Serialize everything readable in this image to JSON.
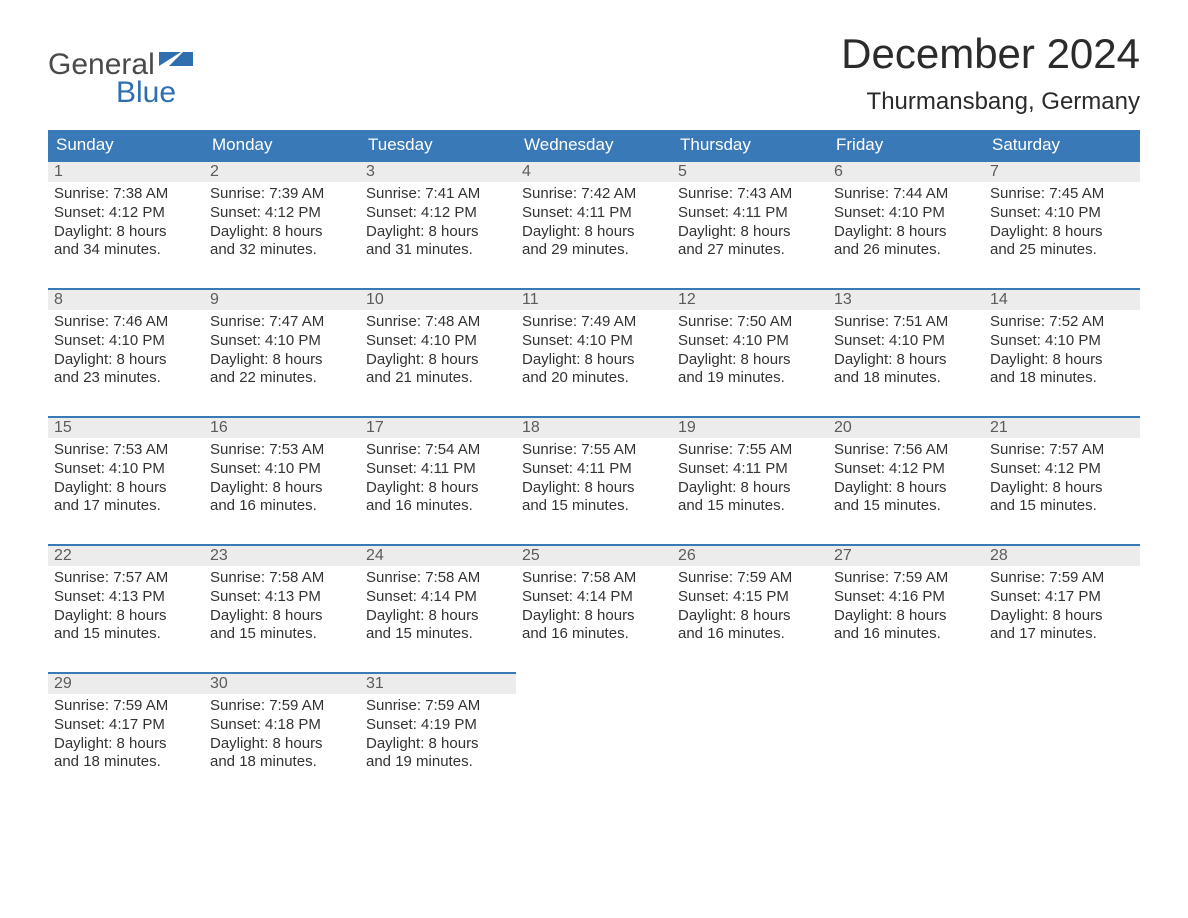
{
  "brand": {
    "line1": "General",
    "line2": "Blue"
  },
  "title": "December 2024",
  "location": "Thurmansbang, Germany",
  "colors": {
    "header_bg": "#3a79b7",
    "header_text": "#ffffff",
    "daynum_bg": "#ececec",
    "daynum_border": "#3a79b7",
    "body_text": "#333333",
    "brand_gray": "#4a4a4a",
    "brand_blue": "#2f6fb0",
    "page_bg": "#ffffff"
  },
  "weekdays": [
    "Sunday",
    "Monday",
    "Tuesday",
    "Wednesday",
    "Thursday",
    "Friday",
    "Saturday"
  ],
  "weeks": [
    [
      {
        "n": "1",
        "sr": "Sunrise: 7:38 AM",
        "ss": "Sunset: 4:12 PM",
        "d1": "Daylight: 8 hours",
        "d2": "and 34 minutes."
      },
      {
        "n": "2",
        "sr": "Sunrise: 7:39 AM",
        "ss": "Sunset: 4:12 PM",
        "d1": "Daylight: 8 hours",
        "d2": "and 32 minutes."
      },
      {
        "n": "3",
        "sr": "Sunrise: 7:41 AM",
        "ss": "Sunset: 4:12 PM",
        "d1": "Daylight: 8 hours",
        "d2": "and 31 minutes."
      },
      {
        "n": "4",
        "sr": "Sunrise: 7:42 AM",
        "ss": "Sunset: 4:11 PM",
        "d1": "Daylight: 8 hours",
        "d2": "and 29 minutes."
      },
      {
        "n": "5",
        "sr": "Sunrise: 7:43 AM",
        "ss": "Sunset: 4:11 PM",
        "d1": "Daylight: 8 hours",
        "d2": "and 27 minutes."
      },
      {
        "n": "6",
        "sr": "Sunrise: 7:44 AM",
        "ss": "Sunset: 4:10 PM",
        "d1": "Daylight: 8 hours",
        "d2": "and 26 minutes."
      },
      {
        "n": "7",
        "sr": "Sunrise: 7:45 AM",
        "ss": "Sunset: 4:10 PM",
        "d1": "Daylight: 8 hours",
        "d2": "and 25 minutes."
      }
    ],
    [
      {
        "n": "8",
        "sr": "Sunrise: 7:46 AM",
        "ss": "Sunset: 4:10 PM",
        "d1": "Daylight: 8 hours",
        "d2": "and 23 minutes."
      },
      {
        "n": "9",
        "sr": "Sunrise: 7:47 AM",
        "ss": "Sunset: 4:10 PM",
        "d1": "Daylight: 8 hours",
        "d2": "and 22 minutes."
      },
      {
        "n": "10",
        "sr": "Sunrise: 7:48 AM",
        "ss": "Sunset: 4:10 PM",
        "d1": "Daylight: 8 hours",
        "d2": "and 21 minutes."
      },
      {
        "n": "11",
        "sr": "Sunrise: 7:49 AM",
        "ss": "Sunset: 4:10 PM",
        "d1": "Daylight: 8 hours",
        "d2": "and 20 minutes."
      },
      {
        "n": "12",
        "sr": "Sunrise: 7:50 AM",
        "ss": "Sunset: 4:10 PM",
        "d1": "Daylight: 8 hours",
        "d2": "and 19 minutes."
      },
      {
        "n": "13",
        "sr": "Sunrise: 7:51 AM",
        "ss": "Sunset: 4:10 PM",
        "d1": "Daylight: 8 hours",
        "d2": "and 18 minutes."
      },
      {
        "n": "14",
        "sr": "Sunrise: 7:52 AM",
        "ss": "Sunset: 4:10 PM",
        "d1": "Daylight: 8 hours",
        "d2": "and 18 minutes."
      }
    ],
    [
      {
        "n": "15",
        "sr": "Sunrise: 7:53 AM",
        "ss": "Sunset: 4:10 PM",
        "d1": "Daylight: 8 hours",
        "d2": "and 17 minutes."
      },
      {
        "n": "16",
        "sr": "Sunrise: 7:53 AM",
        "ss": "Sunset: 4:10 PM",
        "d1": "Daylight: 8 hours",
        "d2": "and 16 minutes."
      },
      {
        "n": "17",
        "sr": "Sunrise: 7:54 AM",
        "ss": "Sunset: 4:11 PM",
        "d1": "Daylight: 8 hours",
        "d2": "and 16 minutes."
      },
      {
        "n": "18",
        "sr": "Sunrise: 7:55 AM",
        "ss": "Sunset: 4:11 PM",
        "d1": "Daylight: 8 hours",
        "d2": "and 15 minutes."
      },
      {
        "n": "19",
        "sr": "Sunrise: 7:55 AM",
        "ss": "Sunset: 4:11 PM",
        "d1": "Daylight: 8 hours",
        "d2": "and 15 minutes."
      },
      {
        "n": "20",
        "sr": "Sunrise: 7:56 AM",
        "ss": "Sunset: 4:12 PM",
        "d1": "Daylight: 8 hours",
        "d2": "and 15 minutes."
      },
      {
        "n": "21",
        "sr": "Sunrise: 7:57 AM",
        "ss": "Sunset: 4:12 PM",
        "d1": "Daylight: 8 hours",
        "d2": "and 15 minutes."
      }
    ],
    [
      {
        "n": "22",
        "sr": "Sunrise: 7:57 AM",
        "ss": "Sunset: 4:13 PM",
        "d1": "Daylight: 8 hours",
        "d2": "and 15 minutes."
      },
      {
        "n": "23",
        "sr": "Sunrise: 7:58 AM",
        "ss": "Sunset: 4:13 PM",
        "d1": "Daylight: 8 hours",
        "d2": "and 15 minutes."
      },
      {
        "n": "24",
        "sr": "Sunrise: 7:58 AM",
        "ss": "Sunset: 4:14 PM",
        "d1": "Daylight: 8 hours",
        "d2": "and 15 minutes."
      },
      {
        "n": "25",
        "sr": "Sunrise: 7:58 AM",
        "ss": "Sunset: 4:14 PM",
        "d1": "Daylight: 8 hours",
        "d2": "and 16 minutes."
      },
      {
        "n": "26",
        "sr": "Sunrise: 7:59 AM",
        "ss": "Sunset: 4:15 PM",
        "d1": "Daylight: 8 hours",
        "d2": "and 16 minutes."
      },
      {
        "n": "27",
        "sr": "Sunrise: 7:59 AM",
        "ss": "Sunset: 4:16 PM",
        "d1": "Daylight: 8 hours",
        "d2": "and 16 minutes."
      },
      {
        "n": "28",
        "sr": "Sunrise: 7:59 AM",
        "ss": "Sunset: 4:17 PM",
        "d1": "Daylight: 8 hours",
        "d2": "and 17 minutes."
      }
    ],
    [
      {
        "n": "29",
        "sr": "Sunrise: 7:59 AM",
        "ss": "Sunset: 4:17 PM",
        "d1": "Daylight: 8 hours",
        "d2": "and 18 minutes."
      },
      {
        "n": "30",
        "sr": "Sunrise: 7:59 AM",
        "ss": "Sunset: 4:18 PM",
        "d1": "Daylight: 8 hours",
        "d2": "and 18 minutes."
      },
      {
        "n": "31",
        "sr": "Sunrise: 7:59 AM",
        "ss": "Sunset: 4:19 PM",
        "d1": "Daylight: 8 hours",
        "d2": "and 19 minutes."
      },
      null,
      null,
      null,
      null
    ]
  ]
}
